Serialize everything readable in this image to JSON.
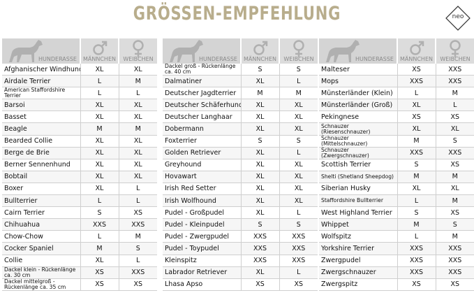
{
  "title": "GRÖSSEN-EMPFEHLUNG",
  "logo": "neo",
  "tables": [
    {
      "headers": [
        "HUNDERASSE",
        "MÄNNCHEN",
        "WEIBCHEN"
      ],
      "rows": [
        [
          "Afghanischer Windhund",
          "XL",
          "XL"
        ],
        [
          "Airdale Terrier",
          "L",
          "M"
        ],
        [
          "American Staffordshire Terrier",
          "L",
          "L"
        ],
        [
          "Barsoi",
          "XL",
          "XL"
        ],
        [
          "Basset",
          "XL",
          "XL"
        ],
        [
          "Beagle",
          "M",
          "M"
        ],
        [
          "Bearded Collie",
          "XL",
          "XL"
        ],
        [
          "Berge de Brie",
          "XL",
          "XL"
        ],
        [
          "Berner Sennenhund",
          "XL",
          "XL"
        ],
        [
          "Bobtail",
          "XL",
          "XL"
        ],
        [
          "Boxer",
          "XL",
          "L"
        ],
        [
          "Bullterrier",
          "L",
          "L"
        ],
        [
          "Cairn Terrier",
          "S",
          "XS"
        ],
        [
          "Chihuahua",
          "XXS",
          "XXS"
        ],
        [
          "Chow-Chow",
          "L",
          "M"
        ],
        [
          "Cocker Spaniel",
          "M",
          "S"
        ],
        [
          "Collie",
          "XL",
          "L"
        ],
        [
          "Dackel klein - Rückenlänge ca. 30 cm",
          "XS",
          "XXS"
        ],
        [
          "Dackel mittelgroß - Rückenlänge ca. 35 cm",
          "XS",
          "XS"
        ]
      ]
    },
    {
      "headers": [
        "HUNDERASSE",
        "MÄNNCHEN",
        "WEIBCHEN"
      ],
      "rows": [
        [
          "Dackel groß - Rückenlänge ca. 40 cm",
          "S",
          "S"
        ],
        [
          "Dalmatiner",
          "XL",
          "L"
        ],
        [
          "Deutscher Jagdterrier",
          "M",
          "M"
        ],
        [
          "Deutscher Schäferhund",
          "XL",
          "XL"
        ],
        [
          "Deutscher Langhaar",
          "XL",
          "XL"
        ],
        [
          "Dobermann",
          "XL",
          "XL"
        ],
        [
          "Foxterrier",
          "S",
          "S"
        ],
        [
          "Golden Retriever",
          "XL",
          "L"
        ],
        [
          "Greyhound",
          "XL",
          "XL"
        ],
        [
          "Hovawart",
          "XL",
          "XL"
        ],
        [
          "Irish Red Setter",
          "XL",
          "XL"
        ],
        [
          "Irish Wolfhound",
          "XL",
          "XL"
        ],
        [
          "Pudel - Großpudel",
          "XL",
          "L"
        ],
        [
          "Pudel - Kleinpudel",
          "S",
          "S"
        ],
        [
          "Pudel - Zwergpudel",
          "XXS",
          "XXS"
        ],
        [
          "Pudel - Toypudel",
          "XXS",
          "XXS"
        ],
        [
          "Kleinspitz",
          "XXS",
          "XXS"
        ],
        [
          "Labrador Retriever",
          "XL",
          "L"
        ],
        [
          "Lhasa Apso",
          "XS",
          "XS"
        ]
      ]
    },
    {
      "headers": [
        "HUNDERASSE",
        "MÄNNCHEN",
        "WEIBCHEN"
      ],
      "rows": [
        [
          "Malteser",
          "XS",
          "XXS"
        ],
        [
          "Mops",
          "XXS",
          "XXS"
        ],
        [
          "Münsterländer (Klein)",
          "L",
          "M"
        ],
        [
          "Münsterländer (Groß)",
          "XL",
          "L"
        ],
        [
          "Pekingnese",
          "XS",
          "XS"
        ],
        [
          "Schnauzer (Riesenschnauzer)",
          "XL",
          "XL"
        ],
        [
          "Schnauzer (Mittelschnauzer)",
          "M",
          "S"
        ],
        [
          "Schnauzer (Zwergschnauzer)",
          "XXS",
          "XXS"
        ],
        [
          "Scottish Terrier",
          "S",
          "XS"
        ],
        [
          "Shelti (Shetland Sheepdog)",
          "M",
          "M"
        ],
        [
          "Siberian Husky",
          "XL",
          "XL"
        ],
        [
          "Staffordshire Bullterrier",
          "L",
          "M"
        ],
        [
          "West Highland Terrier",
          "S",
          "XS"
        ],
        [
          "Whippet",
          "M",
          "S"
        ],
        [
          "Wolfspitz",
          "L",
          "M"
        ],
        [
          "Yorkshire Terrier",
          "XXS",
          "XXS"
        ],
        [
          "Zwergpudel",
          "XXS",
          "XXS"
        ],
        [
          "Zwergschnauzer",
          "XXS",
          "XXS"
        ],
        [
          "Zwergspitz",
          "XS",
          "XS"
        ]
      ]
    }
  ]
}
